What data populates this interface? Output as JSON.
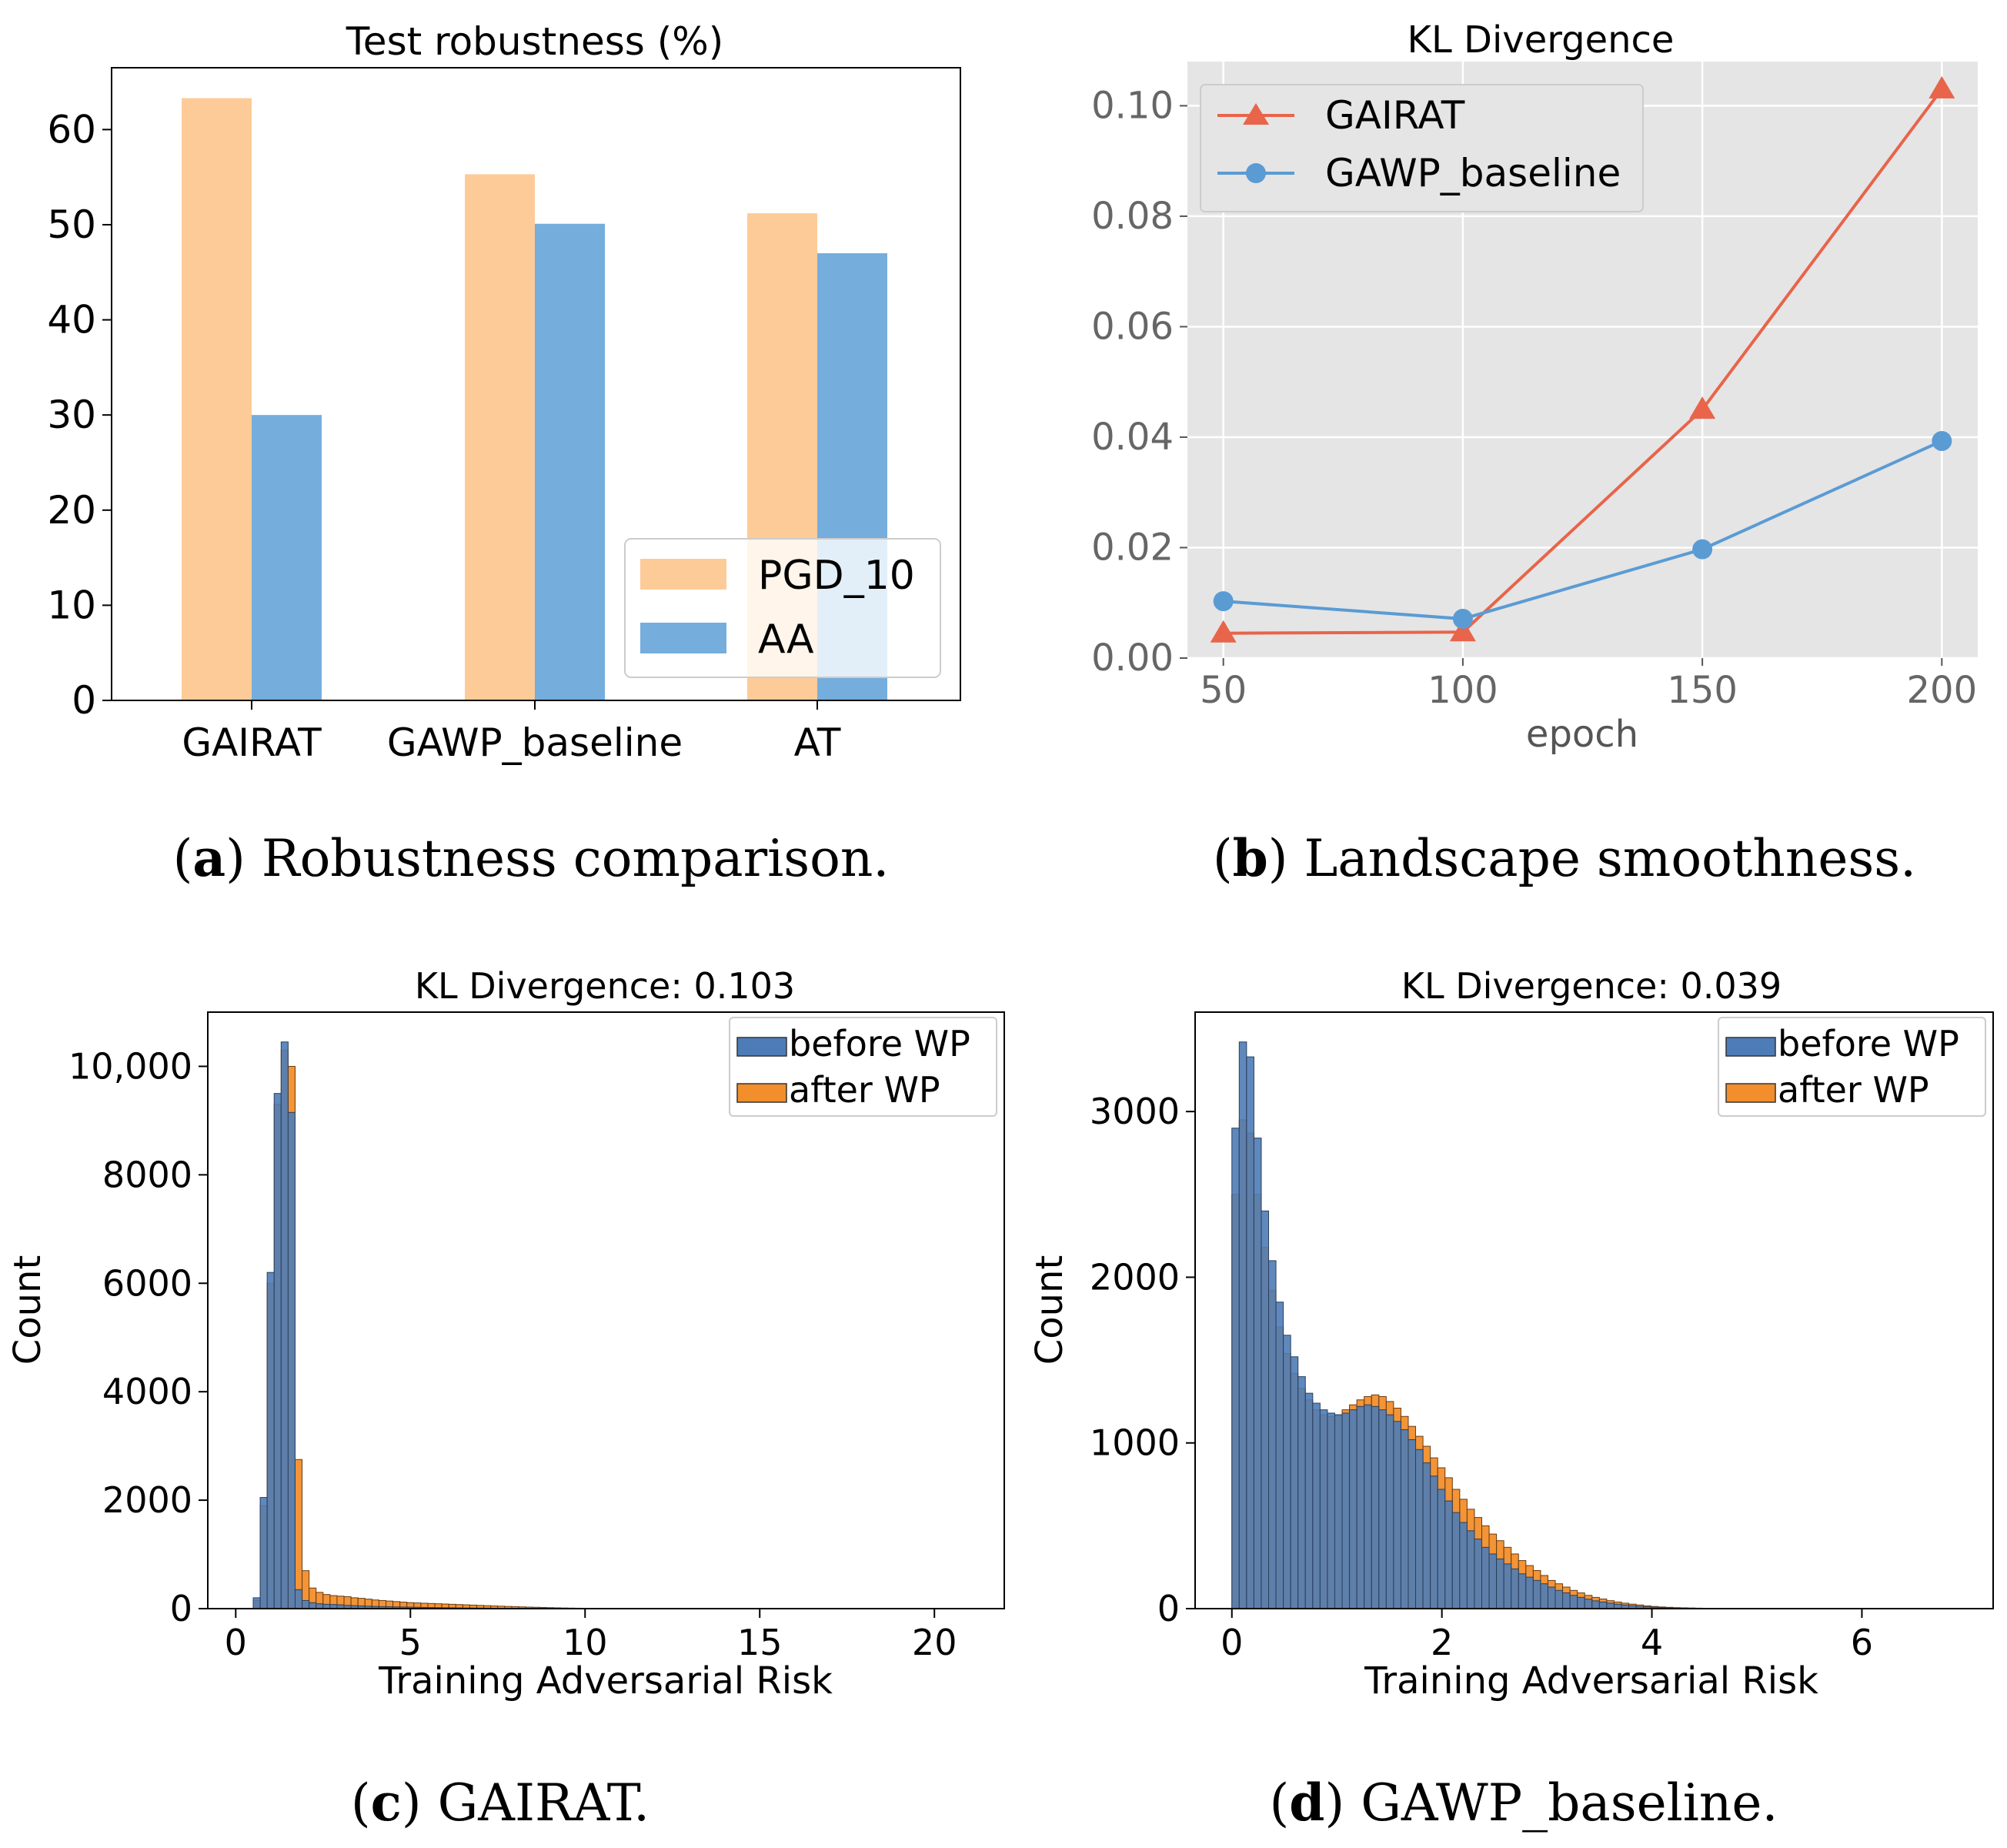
{
  "colors": {
    "pgd": "#FDCB97",
    "aa": "#75ADDD",
    "gairat_line": "#E8644A",
    "gawp_line": "#5A9BD4",
    "before_wp": "#4E7CB6",
    "after_wp": "#F28E2B",
    "ggplot_bg": "#E5E5E5"
  },
  "chart_data": [
    {
      "type": "bar",
      "title": "Test robustness (%)",
      "categories": [
        "GAIRAT",
        "GAWP_baseline",
        "AT"
      ],
      "series": [
        {
          "name": "PGD_10",
          "values": [
            63.3,
            55.3,
            51.2
          ]
        },
        {
          "name": "AA",
          "values": [
            30.0,
            50.1,
            47.0
          ]
        }
      ],
      "ylim": [
        0,
        66.5
      ],
      "yticks": [
        0,
        10,
        20,
        30,
        40,
        50,
        60
      ],
      "legend": [
        "PGD_10",
        "AA"
      ],
      "legend_position": "bottom-right",
      "caption_label": "a",
      "caption_text": "Robustness comparison."
    },
    {
      "type": "line",
      "title": "KL Divergence",
      "x": [
        50,
        100,
        150,
        200
      ],
      "series": [
        {
          "name": "GAIRAT",
          "values": [
            0.0045,
            0.0047,
            0.045,
            0.103
          ],
          "marker": "triangle"
        },
        {
          "name": "GAWP_baseline",
          "values": [
            0.0103,
            0.0071,
            0.0197,
            0.0393
          ],
          "marker": "circle"
        }
      ],
      "xlabel": "epoch",
      "xlim": [
        42.5,
        207.5
      ],
      "ylim": [
        0,
        0.108
      ],
      "xticks": [
        "50",
        "100",
        "150",
        "200"
      ],
      "yticks": [
        "0.00",
        "0.02",
        "0.04",
        "0.06",
        "0.08",
        "0.10"
      ],
      "legend_position": "top-left",
      "caption_label": "b",
      "caption_text": "Landscape smoothness."
    },
    {
      "type": "histogram",
      "title": "KL Divergence: 0.103",
      "xlabel": "Training Adversarial Risk",
      "ylabel": "Count",
      "xlim": [
        -0.8,
        22.0
      ],
      "ylim": [
        0,
        11000
      ],
      "xticks": [
        0,
        5,
        10,
        15,
        20
      ],
      "yticks": [
        "0",
        "2000",
        "4000",
        "6000",
        "8000",
        "10,000"
      ],
      "bin_start": 0.5,
      "bin_width": 0.2,
      "series": [
        {
          "name": "before WP",
          "values": [
            200,
            2050,
            6200,
            9500,
            10450,
            9150,
            350,
            150,
            110,
            90,
            80,
            75,
            70,
            60,
            55,
            50,
            45,
            40,
            38,
            35,
            32,
            30,
            28,
            25,
            22,
            20,
            18,
            16,
            15,
            13,
            12,
            11,
            10,
            9,
            8,
            7,
            6,
            6,
            5,
            5,
            4,
            4,
            3,
            3,
            3,
            2,
            2,
            2,
            2,
            1,
            1
          ]
        },
        {
          "name": "after WP",
          "values": [
            150,
            1900,
            6000,
            9300,
            10300,
            10000,
            2750,
            700,
            380,
            300,
            260,
            240,
            230,
            220,
            200,
            190,
            175,
            160,
            150,
            140,
            130,
            120,
            110,
            105,
            100,
            95,
            90,
            85,
            80,
            75,
            70,
            65,
            60,
            55,
            50,
            45,
            40,
            36,
            32,
            28,
            25,
            22,
            18,
            15,
            12,
            10,
            8,
            6,
            4,
            3,
            2
          ]
        }
      ],
      "legend_position": "top-right",
      "caption_label": "c",
      "caption_text": "GAIRAT."
    },
    {
      "type": "histogram",
      "title": "KL Divergence: 0.039",
      "xlabel": "Training Adversarial Risk",
      "ylabel": "Count",
      "xlim": [
        -0.35,
        7.25
      ],
      "ylim": [
        0,
        3600
      ],
      "xticks": [
        0,
        2,
        4,
        6
      ],
      "yticks": [
        "0",
        "1000",
        "2000",
        "3000"
      ],
      "bin_start": 0.0,
      "bin_width": 0.07,
      "series": [
        {
          "name": "before WP",
          "values": [
            2900,
            3420,
            3330,
            2840,
            2400,
            2100,
            1850,
            1650,
            1520,
            1400,
            1300,
            1240,
            1200,
            1180,
            1170,
            1180,
            1200,
            1220,
            1230,
            1220,
            1200,
            1170,
            1130,
            1080,
            1020,
            960,
            880,
            800,
            720,
            650,
            580,
            520,
            470,
            420,
            370,
            330,
            300,
            270,
            240,
            210,
            190,
            170,
            150,
            130,
            110,
            95,
            80,
            68,
            57,
            47,
            40,
            33,
            27,
            22,
            18,
            14,
            11,
            9,
            7,
            5,
            4,
            3,
            2,
            2,
            1,
            1
          ]
        },
        {
          "name": "after WP",
          "values": [
            2500,
            2950,
            2870,
            2500,
            2180,
            1920,
            1700,
            1540,
            1420,
            1330,
            1260,
            1200,
            1170,
            1160,
            1170,
            1200,
            1230,
            1260,
            1280,
            1290,
            1280,
            1250,
            1210,
            1160,
            1100,
            1040,
            980,
            910,
            850,
            790,
            720,
            660,
            600,
            550,
            500,
            450,
            410,
            370,
            330,
            290,
            260,
            230,
            200,
            170,
            150,
            130,
            110,
            95,
            80,
            68,
            58,
            48,
            40,
            33,
            27,
            22,
            17,
            13,
            10,
            8,
            6,
            5,
            4,
            3,
            2,
            1
          ]
        }
      ],
      "legend_position": "top-right",
      "caption_label": "d",
      "caption_text": "GAWP_baseline."
    }
  ]
}
